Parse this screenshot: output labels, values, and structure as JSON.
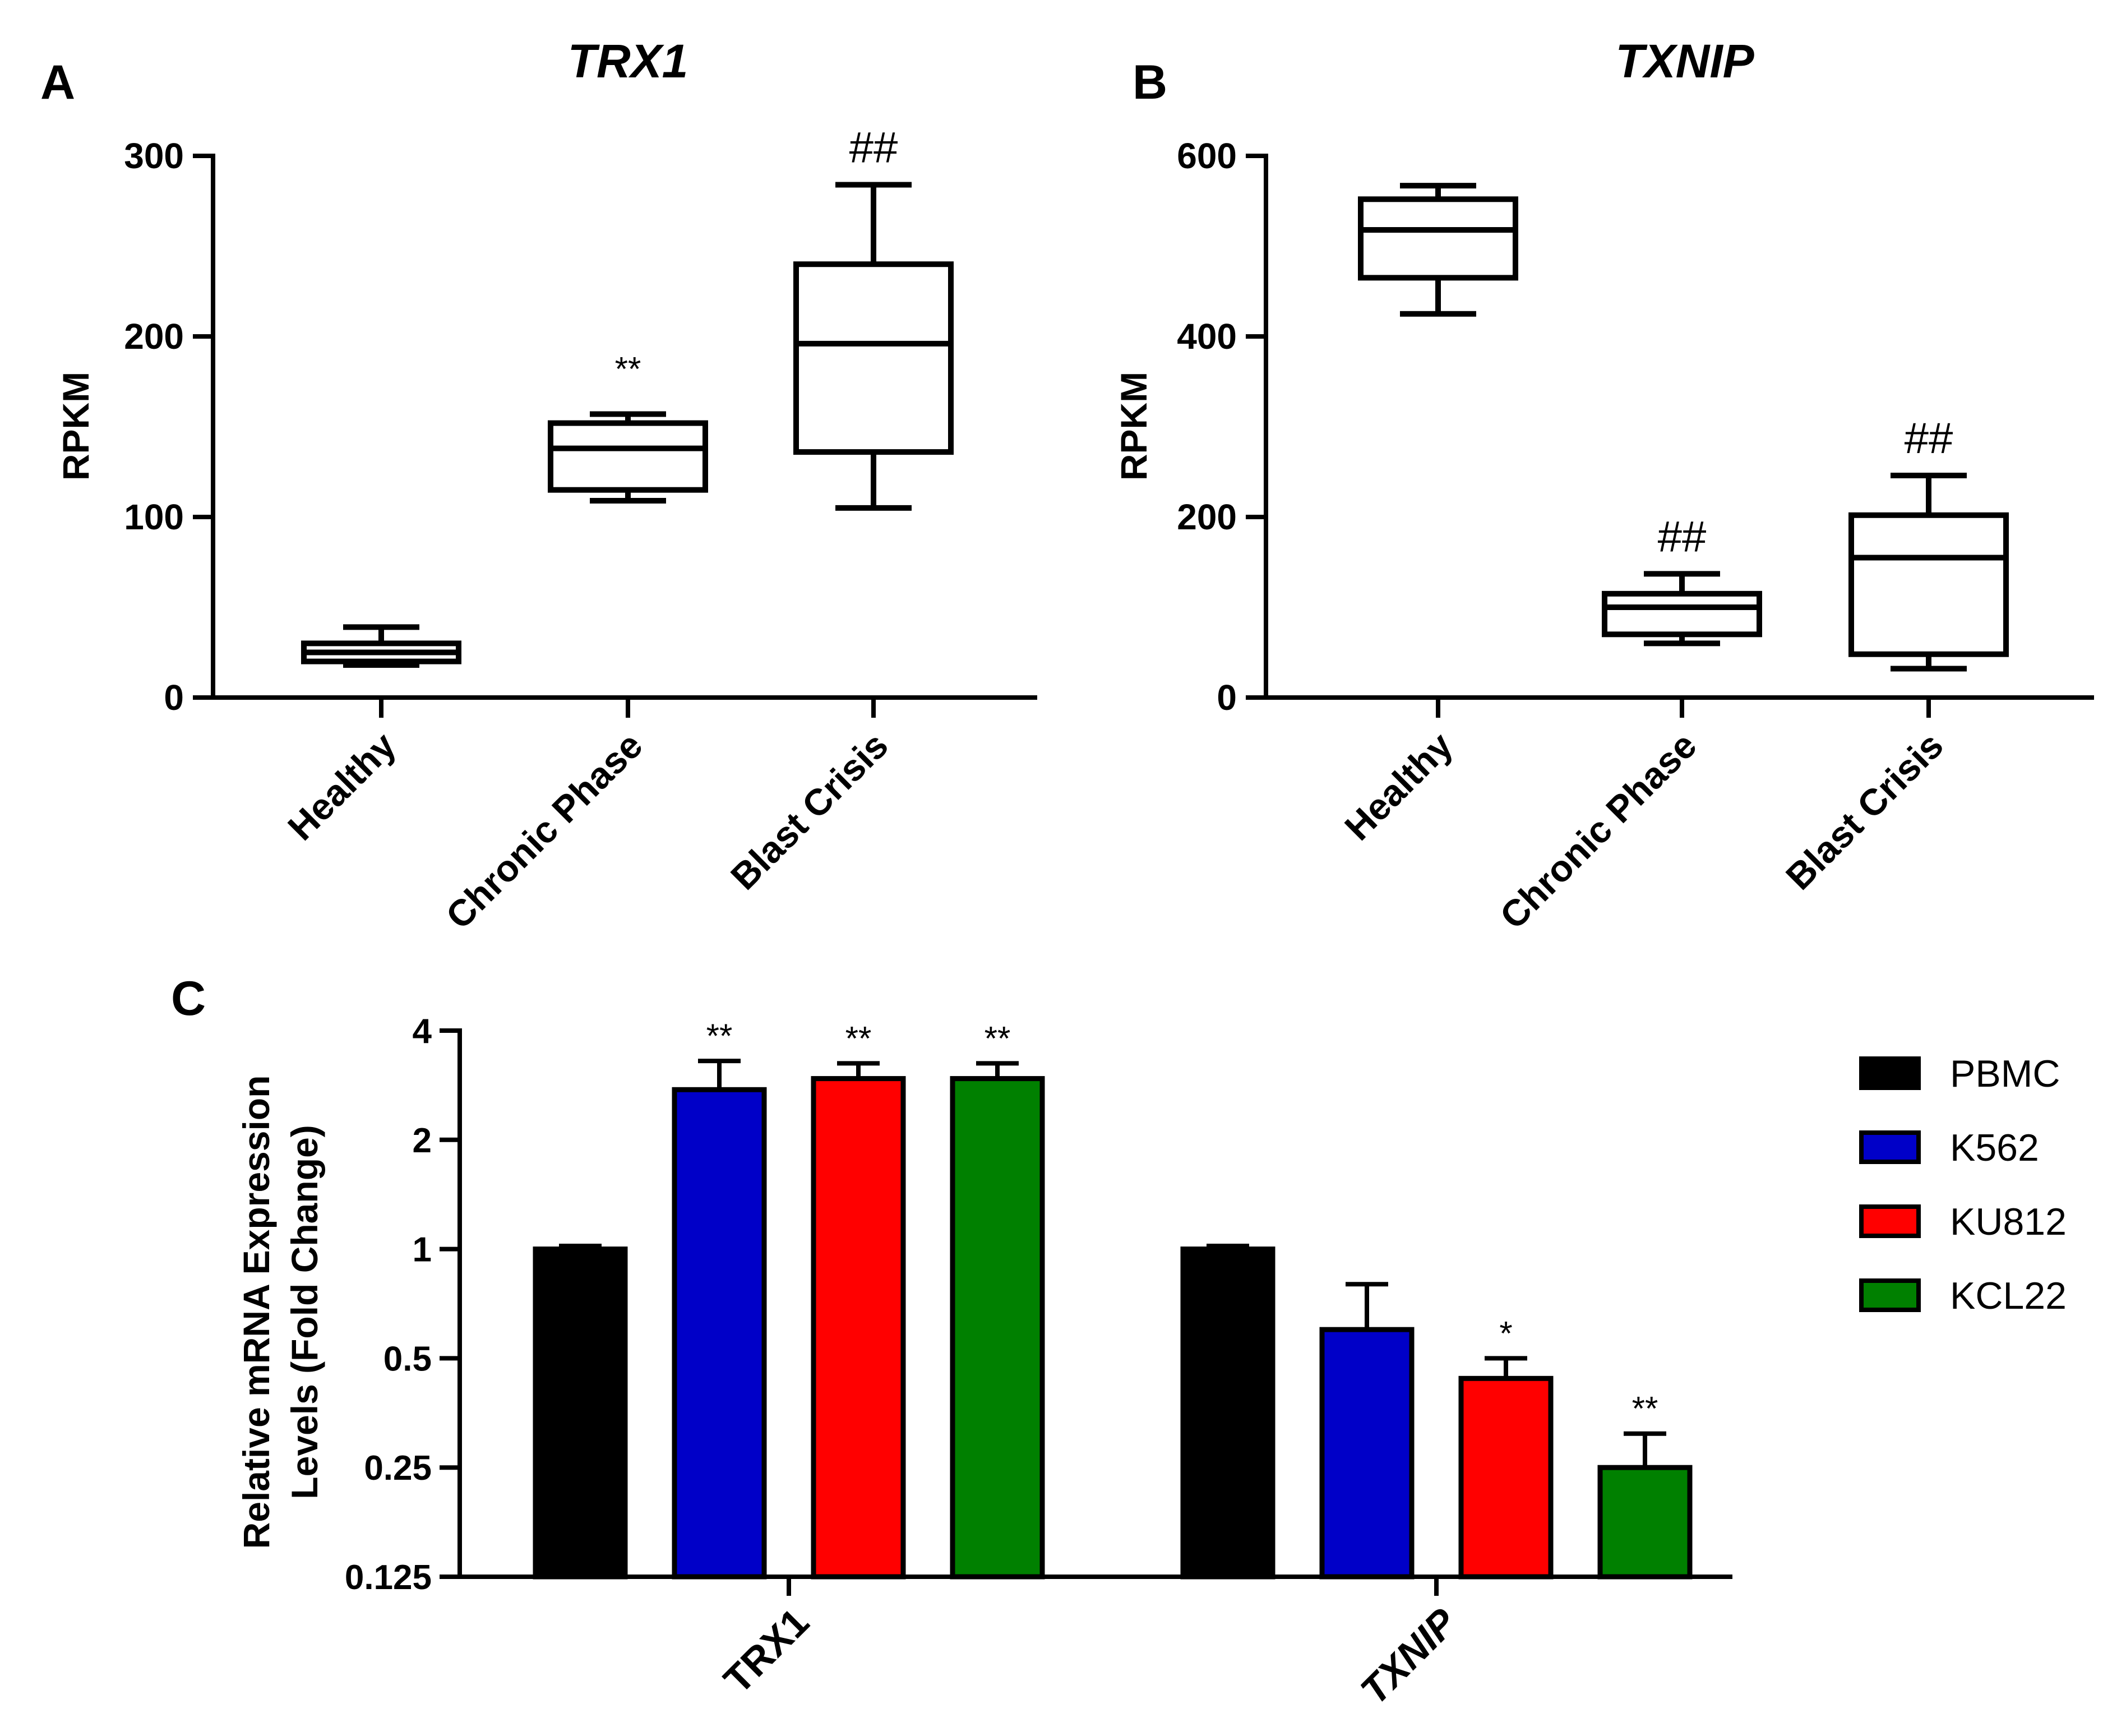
{
  "chart_data": [
    {
      "panel": "A",
      "type": "box",
      "title": "TRX1",
      "ylabel": "RPKM",
      "ylim": [
        0,
        300
      ],
      "yticks": [
        0,
        100,
        200,
        300
      ],
      "categories": [
        "Healthy",
        "Chronic Phase",
        "Blast Crisis"
      ],
      "boxes": [
        {
          "category": "Healthy",
          "min": 18,
          "q1": 20,
          "median": 25,
          "q3": 30,
          "max": 39,
          "annotation": ""
        },
        {
          "category": "Chronic Phase",
          "min": 109,
          "q1": 115,
          "median": 138,
          "q3": 152,
          "max": 157,
          "annotation": "**"
        },
        {
          "category": "Blast Crisis",
          "min": 105,
          "q1": 136,
          "median": 196,
          "q3": 240,
          "max": 284,
          "annotation": "##"
        }
      ]
    },
    {
      "panel": "B",
      "type": "box",
      "title": "TXNIP",
      "ylabel": "RPKM",
      "ylim": [
        0,
        600
      ],
      "yticks": [
        0,
        200,
        400,
        600
      ],
      "categories": [
        "Healthy",
        "Chronic Phase",
        "Blast Crisis"
      ],
      "boxes": [
        {
          "category": "Healthy",
          "min": 425,
          "q1": 465,
          "median": 518,
          "q3": 552,
          "max": 567,
          "annotation": ""
        },
        {
          "category": "Chronic Phase",
          "min": 60,
          "q1": 70,
          "median": 100,
          "q3": 115,
          "max": 137,
          "annotation": "##"
        },
        {
          "category": "Blast Crisis",
          "min": 32,
          "q1": 48,
          "median": 155,
          "q3": 202,
          "max": 246,
          "annotation": "##"
        }
      ]
    },
    {
      "panel": "C",
      "type": "bar",
      "yscale": "log2",
      "ylabel": "Relative mRNA Expression Levels (Fold Change)",
      "ylim": [
        0.125,
        4
      ],
      "yticks": [
        0.125,
        0.25,
        0.5,
        1,
        2,
        4
      ],
      "ytick_labels": [
        "0.125",
        "0.25",
        "0.5",
        "1",
        "2",
        "4"
      ],
      "categories": [
        "TRX1",
        "TXNIP"
      ],
      "series": [
        {
          "name": "PBMC",
          "color": "#000000",
          "values": [
            1.0,
            1.0
          ],
          "errors": [
            1.02,
            1.02
          ],
          "annotations": [
            "",
            ""
          ]
        },
        {
          "name": "K562",
          "color": "#0000c8",
          "values": [
            2.75,
            0.6
          ],
          "errors": [
            3.3,
            0.8
          ],
          "annotations": [
            "**",
            ""
          ]
        },
        {
          "name": "KU812",
          "color": "#ff0000",
          "values": [
            2.95,
            0.44
          ],
          "errors": [
            3.25,
            0.5
          ],
          "annotations": [
            "**",
            "*"
          ]
        },
        {
          "name": "KCL22",
          "color": "#008000",
          "values": [
            2.95,
            0.25
          ],
          "errors": [
            3.25,
            0.31
          ],
          "annotations": [
            "**",
            "**"
          ]
        }
      ],
      "legend_position": "right"
    }
  ],
  "panel_labels": {
    "a": "A",
    "b": "B",
    "c": "C"
  },
  "ylabel_c_line1": "Relative mRNA Expression",
  "ylabel_c_line2": "Levels (Fold Change)"
}
